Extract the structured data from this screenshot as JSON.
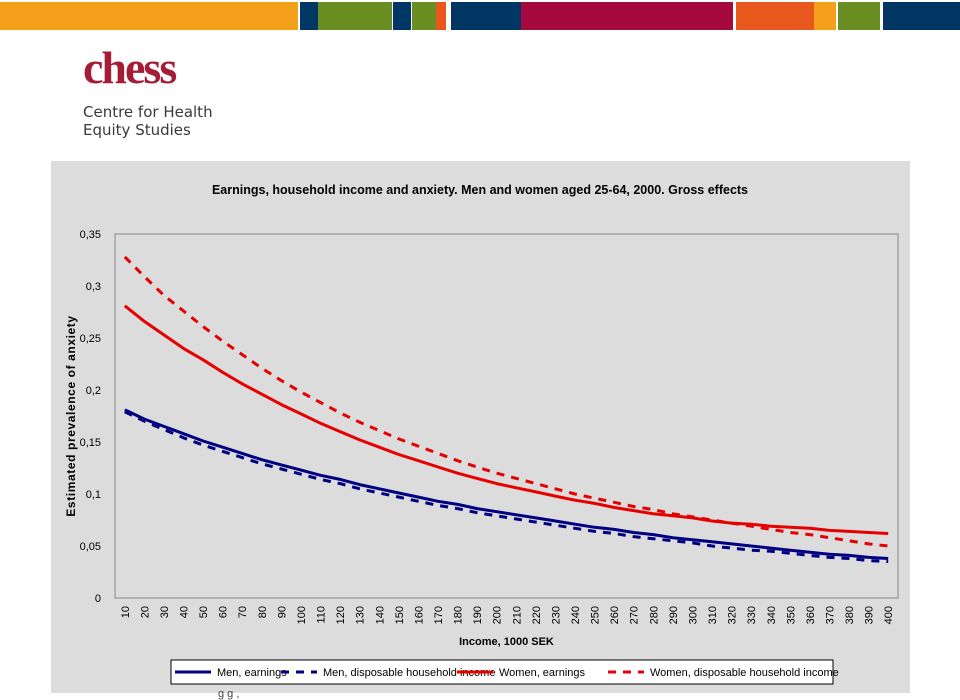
{
  "brand": {
    "logo_text": "chess",
    "name_line1": "Centre for Health",
    "name_line2": "Equity Studies",
    "colors": [
      "#003764",
      "#6b8e23",
      "#a6093d",
      "#e8581c",
      "#f5a01a"
    ]
  },
  "footer": {
    "cutoff_text": "g   g    ,"
  },
  "chart_data": {
    "type": "line",
    "title": "Earnings, household income and anxiety. Men and women aged 25-64, 2000. Gross effects",
    "xlabel": "Income, 1000 SEK",
    "ylabel": "Estimated prevalence of anxiety",
    "ylim": [
      0,
      0.35
    ],
    "yticks": [
      "0",
      "0,05",
      "0,1",
      "0,15",
      "0,2",
      "0,25",
      "0,3",
      "0,35"
    ],
    "yticks_values": [
      0,
      0.05,
      0.1,
      0.15,
      0.2,
      0.25,
      0.3,
      0.35
    ],
    "grid": false,
    "legend_position": "bottom",
    "x": [
      10,
      20,
      30,
      40,
      50,
      60,
      70,
      80,
      90,
      100,
      110,
      120,
      130,
      140,
      150,
      160,
      170,
      180,
      190,
      200,
      210,
      220,
      230,
      240,
      250,
      260,
      270,
      280,
      290,
      300,
      310,
      320,
      330,
      340,
      350,
      360,
      370,
      380,
      390,
      400
    ],
    "series": [
      {
        "name": "Men, earnings",
        "color": "#000080",
        "style": "solid",
        "values": [
          0.181,
          0.172,
          0.165,
          0.158,
          0.151,
          0.145,
          0.139,
          0.133,
          0.128,
          0.123,
          0.118,
          0.114,
          0.109,
          0.105,
          0.101,
          0.097,
          0.093,
          0.09,
          0.086,
          0.083,
          0.08,
          0.077,
          0.074,
          0.071,
          0.068,
          0.066,
          0.063,
          0.061,
          0.058,
          0.056,
          0.054,
          0.052,
          0.05,
          0.048,
          0.046,
          0.044,
          0.042,
          0.041,
          0.039,
          0.038
        ]
      },
      {
        "name": "Men, disposable household income",
        "color": "#000080",
        "style": "dashed",
        "values": [
          0.179,
          0.17,
          0.162,
          0.154,
          0.147,
          0.141,
          0.135,
          0.129,
          0.124,
          0.119,
          0.114,
          0.11,
          0.105,
          0.101,
          0.097,
          0.093,
          0.089,
          0.086,
          0.082,
          0.079,
          0.076,
          0.073,
          0.07,
          0.067,
          0.064,
          0.062,
          0.059,
          0.057,
          0.055,
          0.053,
          0.05,
          0.048,
          0.046,
          0.045,
          0.043,
          0.041,
          0.039,
          0.038,
          0.036,
          0.035
        ]
      },
      {
        "name": "Women, earnings",
        "color": "#e60000",
        "style": "solid",
        "values": [
          0.281,
          0.266,
          0.253,
          0.24,
          0.229,
          0.217,
          0.206,
          0.196,
          0.186,
          0.177,
          0.168,
          0.16,
          0.152,
          0.145,
          0.138,
          0.132,
          0.126,
          0.12,
          0.115,
          0.11,
          0.106,
          0.102,
          0.098,
          0.094,
          0.091,
          0.087,
          0.084,
          0.081,
          0.079,
          0.077,
          0.074,
          0.072,
          0.071,
          0.069,
          0.068,
          0.067,
          0.065,
          0.064,
          0.063,
          0.062
        ]
      },
      {
        "name": "Women, disposable household income",
        "color": "#e60000",
        "style": "dashed",
        "values": [
          0.328,
          0.309,
          0.291,
          0.276,
          0.261,
          0.247,
          0.234,
          0.221,
          0.209,
          0.198,
          0.188,
          0.178,
          0.169,
          0.161,
          0.153,
          0.146,
          0.139,
          0.132,
          0.126,
          0.12,
          0.115,
          0.11,
          0.105,
          0.1,
          0.096,
          0.092,
          0.088,
          0.085,
          0.081,
          0.078,
          0.075,
          0.072,
          0.069,
          0.066,
          0.063,
          0.061,
          0.058,
          0.055,
          0.052,
          0.05
        ]
      }
    ]
  }
}
